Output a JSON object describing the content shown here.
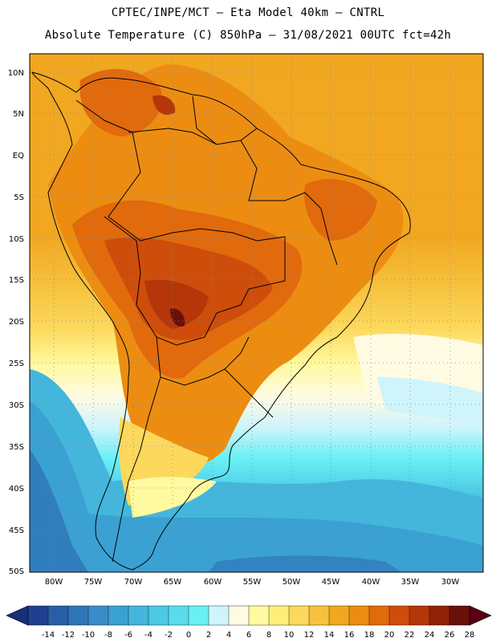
{
  "header": {
    "line1": "CPTEC/INPE/MCT –  Eta Model 40km – CNTRL",
    "line2": "Absolute Temperature (C) 850hPa – 31/08/2021 00UTC fct=42h"
  },
  "axes": {
    "lat_labels": [
      "10N",
      "5N",
      "EQ",
      "5S",
      "10S",
      "15S",
      "20S",
      "25S",
      "30S",
      "35S",
      "40S",
      "45S",
      "50S"
    ],
    "lon_labels": [
      "80W",
      "75W",
      "70W",
      "65W",
      "60W",
      "55W",
      "50W",
      "45W",
      "40W",
      "35W",
      "30W"
    ]
  },
  "colorbar": {
    "labels": [
      "-14",
      "-12",
      "-10",
      "-8",
      "-6",
      "-4",
      "-2",
      "0",
      "2",
      "4",
      "6",
      "8",
      "10",
      "12",
      "14",
      "16",
      "18",
      "20",
      "22",
      "24",
      "26",
      "28"
    ],
    "colors": [
      "#1f3f8f",
      "#2a5da8",
      "#2f76b8",
      "#3a8cc8",
      "#3aa1d2",
      "#44b6dc",
      "#4cc9e4",
      "#5adcea",
      "#6af0f4",
      "#cff4fb",
      "#fffbe3",
      "#fffaa0",
      "#ffef7a",
      "#fcd95c",
      "#f6c23e",
      "#f1a720",
      "#ec8d12",
      "#e16a0c",
      "#cf4d0b",
      "#b43609",
      "#932009",
      "#6b1008"
    ],
    "low_arrow_color": "#1a2f7a",
    "high_arrow_color": "#5a0014"
  }
}
